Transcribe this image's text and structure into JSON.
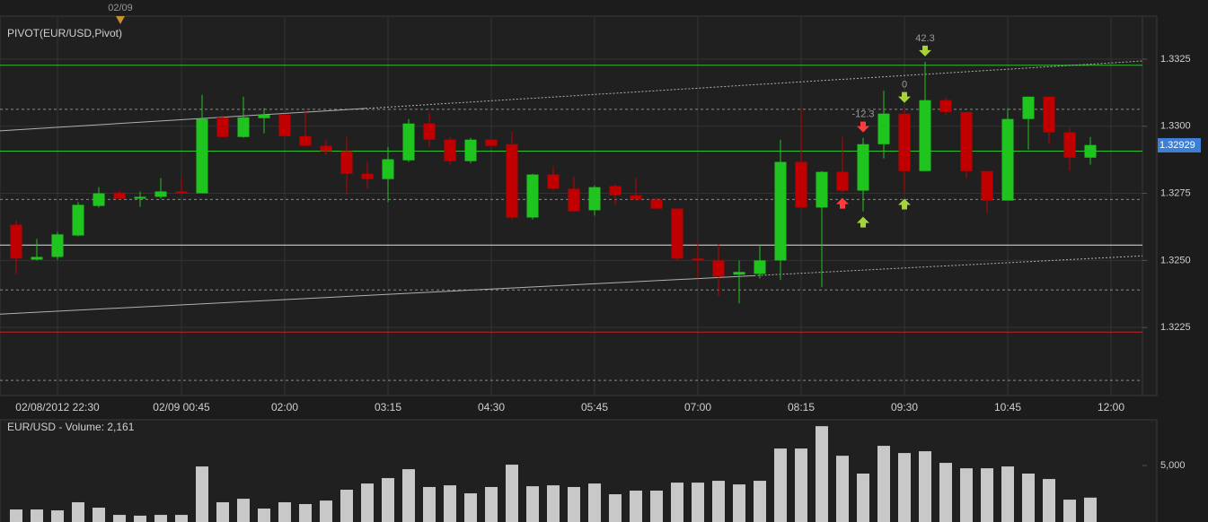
{
  "chart_data": [
    {
      "type": "candlestick",
      "title": "PIVOT(EUR/USD,Pivot)",
      "day_marker": "02/09",
      "categories": [
        null,
        null,
        "02/08/2012 22:30",
        null,
        null,
        null,
        null,
        null,
        "02/09 00:45",
        null,
        null,
        null,
        null,
        "02:00",
        null,
        null,
        null,
        null,
        "03:15",
        null,
        null,
        null,
        null,
        "04:30",
        null,
        null,
        null,
        null,
        "05:45",
        null,
        null,
        null,
        null,
        "07:00",
        null,
        null,
        null,
        null,
        "08:15",
        null,
        null,
        null,
        null,
        "09:30",
        null,
        null,
        null,
        null,
        "10:45",
        null,
        null,
        null,
        null,
        "12:00"
      ],
      "open": [
        1.32633,
        1.32503,
        1.32513,
        1.32593,
        1.32703,
        1.32753,
        1.3273,
        1.32737,
        1.32757,
        1.3275,
        1.33033,
        1.3296,
        1.3303,
        1.33043,
        1.32963,
        1.32927,
        1.32907,
        1.32823,
        1.32803,
        1.32873,
        1.3301,
        1.3295,
        1.3287,
        1.3295,
        1.32933,
        1.3266,
        1.3282,
        1.32767,
        1.32687,
        1.32777,
        1.32743,
        1.32727,
        1.32693,
        1.32507,
        1.325,
        1.32447,
        1.3245,
        1.325,
        1.32867,
        1.32697,
        1.3283,
        1.3276,
        1.32933,
        1.33047,
        1.32833,
        1.33097,
        1.33053,
        1.32833,
        1.32723,
        1.33027,
        1.3311,
        1.32977,
        1.32883,
        null
      ],
      "high": [
        1.3265,
        1.3258,
        1.32607,
        1.32717,
        1.32773,
        1.3276,
        1.32757,
        1.32807,
        1.32813,
        1.33117,
        1.3304,
        1.3311,
        1.33067,
        1.33047,
        1.3306,
        1.3295,
        1.3296,
        1.32867,
        1.32923,
        1.33027,
        1.3305,
        1.3296,
        1.32957,
        1.32953,
        1.3298,
        1.32823,
        1.3285,
        1.32813,
        1.3278,
        1.32783,
        1.32807,
        1.32733,
        1.32697,
        1.32573,
        1.3256,
        1.325,
        1.32557,
        1.3295,
        1.33067,
        1.32833,
        1.3296,
        1.32957,
        1.33133,
        1.33067,
        1.3324,
        1.33107,
        1.33053,
        1.32833,
        1.33067,
        1.3311,
        1.3311,
        1.32993,
        1.3296,
        null
      ],
      "low": [
        1.3245,
        1.325,
        1.32503,
        1.3259,
        1.32697,
        1.32727,
        1.327,
        1.3273,
        1.32747,
        1.3275,
        1.3296,
        1.32957,
        1.32973,
        1.3296,
        1.32927,
        1.32893,
        1.32747,
        1.32767,
        1.32717,
        1.32867,
        1.32923,
        1.32857,
        1.32863,
        1.32923,
        1.32653,
        1.32653,
        1.3276,
        1.3268,
        1.32667,
        1.32707,
        1.3272,
        1.3269,
        1.325,
        1.32433,
        1.32367,
        1.3234,
        1.32433,
        1.32427,
        1.32693,
        1.324,
        1.32753,
        1.32683,
        1.3288,
        1.3275,
        1.32833,
        1.33043,
        1.32807,
        1.32677,
        1.32723,
        1.32913,
        1.32933,
        1.32833,
        1.32857,
        null
      ],
      "close": [
        1.32507,
        1.32513,
        1.32597,
        1.32707,
        1.3275,
        1.3273,
        1.32737,
        1.32757,
        1.3275,
        1.33027,
        1.3296,
        1.33033,
        1.33043,
        1.32963,
        1.32927,
        1.32907,
        1.32823,
        1.32803,
        1.32877,
        1.3301,
        1.3295,
        1.3287,
        1.3295,
        1.32927,
        1.3266,
        1.3282,
        1.32767,
        1.32683,
        1.32773,
        1.32743,
        1.32727,
        1.32693,
        1.32507,
        1.325,
        1.3244,
        1.32457,
        1.325,
        1.32867,
        1.32697,
        1.3283,
        1.3276,
        1.32933,
        1.33047,
        1.32833,
        1.33097,
        1.33053,
        1.32833,
        1.32723,
        1.33027,
        1.3311,
        1.32977,
        1.32883,
        1.3293,
        null
      ],
      "up_color": "#1fc41f",
      "down_color": "#c00000",
      "ylim": [
        1.32,
        1.3337
      ],
      "yticks": [
        1.3225,
        {
          "value": 1.325,
          "label": "1.3250"
        },
        1.3275,
        {
          "value": 1.33,
          "label": "1.3300"
        },
        1.3325
      ],
      "last_price": 1.32929,
      "last_price_color": "#3d7fd6",
      "pivot_lines": [
        {
          "value": 1.33227,
          "color": "#33c033",
          "dashed": false
        },
        {
          "value": 1.33063,
          "color": "#8a8a8a",
          "dashed": true
        },
        {
          "value": 1.32907,
          "color": "#33c033",
          "dashed": false
        },
        {
          "value": 1.32727,
          "color": "#8a8a8a",
          "dashed": true
        },
        {
          "value": 1.32557,
          "color": "#e0e0e0",
          "dashed": false
        },
        {
          "value": 1.3239,
          "color": "#8a8a8a",
          "dashed": true
        },
        {
          "value": 1.32233,
          "color": "#cc2020",
          "dashed": false
        },
        {
          "value": 1.32053,
          "color": "#8a8a8a",
          "dashed": true
        }
      ],
      "trend_lines": [
        {
          "start": 1.32983,
          "end": 1.33243,
          "color": "#b0b0b0"
        },
        {
          "start": 1.323,
          "end": 1.32517,
          "color": "#b0b0b0"
        }
      ],
      "top_signals": [
        null,
        null,
        null,
        null,
        null,
        null,
        null,
        null,
        null,
        null,
        null,
        null,
        null,
        null,
        null,
        null,
        null,
        null,
        null,
        null,
        null,
        null,
        null,
        null,
        null,
        null,
        null,
        null,
        null,
        null,
        null,
        null,
        null,
        null,
        null,
        null,
        null,
        null,
        null,
        null,
        null,
        {
          "label": "-12.3",
          "color": "#ff3b3b"
        },
        null,
        {
          "label": "0",
          "color": "#a6d23a"
        },
        {
          "label": "42.3",
          "color": "#a6d23a"
        },
        null,
        null,
        null,
        null,
        null,
        null,
        null,
        null,
        null
      ],
      "bottom_signals": [
        null,
        null,
        null,
        null,
        null,
        null,
        null,
        null,
        null,
        null,
        null,
        null,
        null,
        null,
        null,
        null,
        null,
        null,
        null,
        null,
        null,
        null,
        null,
        null,
        null,
        null,
        null,
        null,
        null,
        null,
        null,
        null,
        null,
        null,
        null,
        null,
        null,
        null,
        null,
        null,
        {
          "color": "#ff3b3b"
        },
        {
          "color": "#a6d23a"
        },
        null,
        {
          "color": "#a6d23a"
        },
        null,
        null,
        null,
        null,
        null,
        null,
        null,
        null,
        null,
        null
      ],
      "grid": true
    },
    {
      "type": "bar",
      "title": "EUR/USD - Volume: 2,161",
      "color": "#c8c8c8",
      "values": [
        1110,
        1110,
        1030,
        1750,
        1270,
        630,
        560,
        630,
        630,
        4920,
        1750,
        2060,
        1190,
        1750,
        1590,
        1900,
        2860,
        3410,
        3890,
        4680,
        3100,
        3250,
        2540,
        3100,
        5080,
        3170,
        3250,
        3100,
        3410,
        2460,
        2780,
        2780,
        3490,
        3490,
        3650,
        3330,
        3650,
        6510,
        6510,
        8490,
        5870,
        4290,
        6750,
        6110,
        6270,
        5240,
        4760,
        4760,
        4920,
        4290,
        3810,
        1980,
        2161,
        null
      ],
      "ylim": [
        0,
        8900
      ],
      "yticks": [
        {
          "value": 5000,
          "label": "5,000"
        }
      ]
    }
  ]
}
